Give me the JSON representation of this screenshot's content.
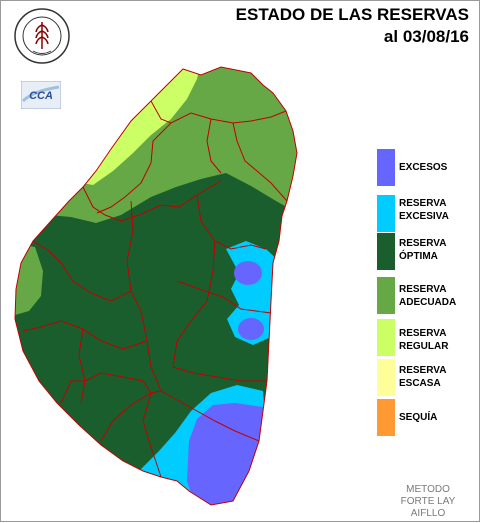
{
  "header": {
    "title_line1": "ESTADO DE LAS RESERVAS",
    "title_line2": "al 03/08/16"
  },
  "logos": {
    "seal_name": "bolsa-de-cereales-seal",
    "seal_text": "BOLSA DE CEREALES DE ENTRE RIOS",
    "cca_name": "cca-logo",
    "cca_text": "CCA"
  },
  "legend": [
    {
      "key": "excesos",
      "line1": "EXCESOS",
      "line2": "",
      "color": "#6666ff"
    },
    {
      "key": "excesiva",
      "line1": "RESERVA",
      "line2": "EXCESIVA",
      "color": "#00ccff"
    },
    {
      "key": "optima",
      "line1": "RESERVA",
      "line2": "ÓPTIMA",
      "color": "#1a5e2e"
    },
    {
      "key": "adecuada",
      "line1": "RESERVA",
      "line2": "ADECUADA",
      "color": "#66a845"
    },
    {
      "key": "regular",
      "line1": "RESERVA",
      "line2": "REGULAR",
      "color": "#ccff66"
    },
    {
      "key": "escasa",
      "line1": "RESERVA",
      "line2": "ESCASA",
      "color": "#ffff99"
    },
    {
      "key": "sequia",
      "line1": "SEQUÍA",
      "line2": "",
      "color": "#ff9933"
    }
  ],
  "method": {
    "line1": "METODO",
    "line2": "FORTE LAY",
    "line3": "AIFLLO"
  },
  "colors": {
    "border_lines": "#c00000"
  }
}
